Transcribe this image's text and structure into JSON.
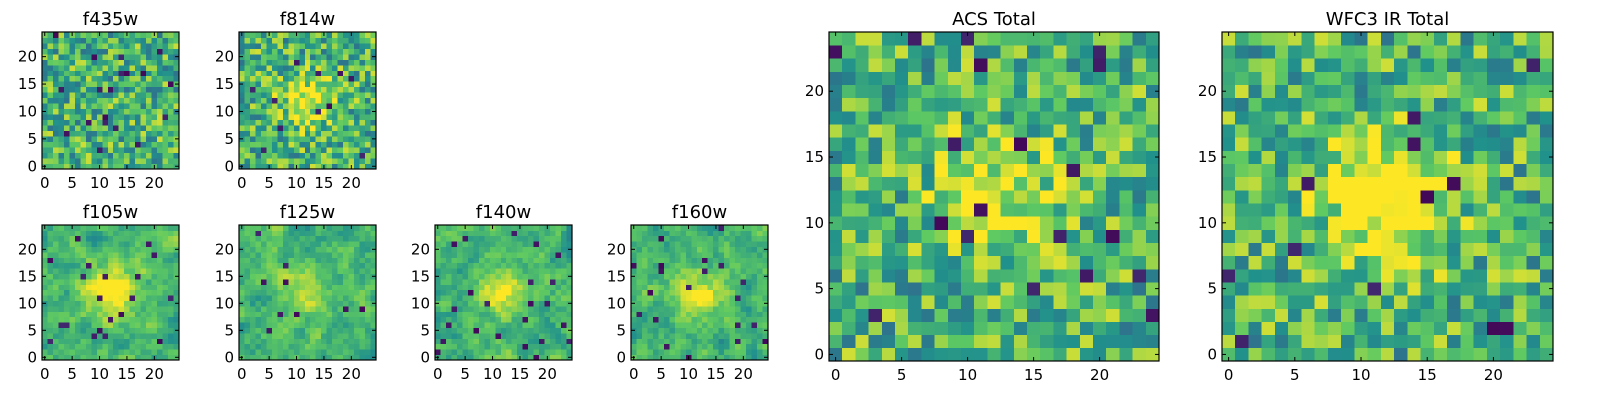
{
  "chart_data": [
    {
      "type": "heatmap",
      "title": "f435w",
      "xticks": [
        "0",
        "5",
        "10",
        "15",
        "20"
      ],
      "yticks": [
        "0",
        "5",
        "10",
        "15",
        "20"
      ],
      "xlim": [
        0,
        25
      ],
      "ylim": [
        0,
        25
      ],
      "grid_size": 25,
      "colormap": "viridis",
      "peak": 0.0,
      "smooth": false,
      "seed": 11
    },
    {
      "type": "heatmap",
      "title": "f814w",
      "xticks": [
        "0",
        "5",
        "10",
        "15",
        "20"
      ],
      "yticks": [
        "0",
        "5",
        "10",
        "15",
        "20"
      ],
      "xlim": [
        0,
        25
      ],
      "ylim": [
        0,
        25
      ],
      "grid_size": 25,
      "colormap": "viridis",
      "peak": 0.35,
      "smooth": false,
      "seed": 23
    },
    {
      "type": "heatmap",
      "title": "f105w",
      "xticks": [
        "0",
        "5",
        "10",
        "15",
        "20"
      ],
      "yticks": [
        "0",
        "5",
        "10",
        "15",
        "20"
      ],
      "xlim": [
        0,
        25
      ],
      "ylim": [
        0,
        25
      ],
      "grid_size": 25,
      "colormap": "viridis",
      "peak": 0.45,
      "smooth": true,
      "seed": 37
    },
    {
      "type": "heatmap",
      "title": "f125w",
      "xticks": [
        "0",
        "5",
        "10",
        "15",
        "20"
      ],
      "yticks": [
        "0",
        "5",
        "10",
        "15",
        "20"
      ],
      "xlim": [
        0,
        25
      ],
      "ylim": [
        0,
        25
      ],
      "grid_size": 25,
      "colormap": "viridis",
      "peak": 0.25,
      "smooth": true,
      "seed": 41
    },
    {
      "type": "heatmap",
      "title": "f140w",
      "xticks": [
        "0",
        "5",
        "10",
        "15",
        "20"
      ],
      "yticks": [
        "0",
        "5",
        "10",
        "15",
        "20"
      ],
      "xlim": [
        0,
        25
      ],
      "ylim": [
        0,
        25
      ],
      "grid_size": 25,
      "colormap": "viridis",
      "peak": 0.3,
      "smooth": true,
      "seed": 53
    },
    {
      "type": "heatmap",
      "title": "f160w",
      "xticks": [
        "0",
        "5",
        "10",
        "15",
        "20"
      ],
      "yticks": [
        "0",
        "5",
        "10",
        "15",
        "20"
      ],
      "xlim": [
        0,
        25
      ],
      "ylim": [
        0,
        25
      ],
      "grid_size": 25,
      "colormap": "viridis",
      "peak": 0.3,
      "smooth": true,
      "seed": 67
    },
    {
      "type": "heatmap",
      "title": "ACS Total",
      "xticks": [
        "0",
        "5",
        "10",
        "15",
        "20"
      ],
      "yticks": [
        "0",
        "5",
        "10",
        "15",
        "20"
      ],
      "xlim": [
        0,
        25
      ],
      "ylim": [
        0,
        25
      ],
      "grid_size": 25,
      "colormap": "viridis",
      "peak": 0.35,
      "smooth": false,
      "seed": 79
    },
    {
      "type": "heatmap",
      "title": "WFC3 IR Total",
      "xticks": [
        "0",
        "5",
        "10",
        "15",
        "20"
      ],
      "yticks": [
        "0",
        "5",
        "10",
        "15",
        "20"
      ],
      "xlim": [
        0,
        25
      ],
      "ylim": [
        0,
        25
      ],
      "grid_size": 25,
      "colormap": "viridis",
      "peak": 0.55,
      "smooth": false,
      "seed": 97
    }
  ],
  "colors": {
    "viridis": [
      "#440154",
      "#3b528b",
      "#21918c",
      "#5ec962",
      "#fde725"
    ],
    "axis": "#000000",
    "background": "#ffffff"
  }
}
